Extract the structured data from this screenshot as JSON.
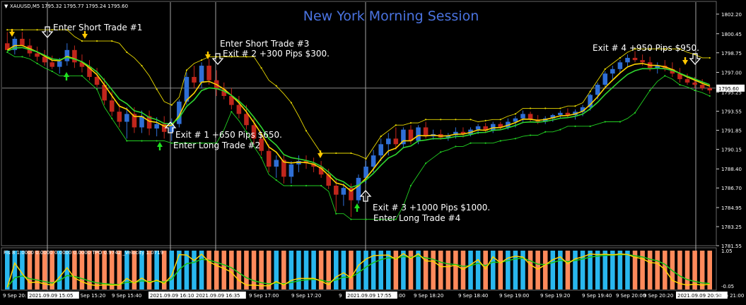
{
  "chart_data": {
    "type": "candlestick",
    "symbol_header": "XAUUSD,M5  1795.32 1795.77 1795.24 1795.60",
    "title": "New York Morning Session",
    "colors": {
      "background": "#000000",
      "bull": "#2f6fd6",
      "bear": "#c0261c",
      "ma_fast": "#ffd400",
      "ma_green": "#2fd62f",
      "trail_yellow": "#e8d800",
      "trail_green": "#22d122",
      "title": "#4a73e0",
      "hist_bull": "#29b7ee",
      "hist_bear": "#ff8a5b"
    },
    "ylim": [
      1781.5,
      1803
    ],
    "y_ticks": [
      "1802.20",
      "1800.45",
      "1798.75",
      "1797.00",
      "1795.25",
      "1793.55",
      "1791.85",
      "1790.15",
      "1788.40",
      "1786.70",
      "1784.95",
      "1783.25",
      "1781.55"
    ],
    "current_price": "1795.60",
    "current_price_value": 1795.6,
    "x_ticks": [
      "9 Sep 20:",
      "2021.09.09 15:05",
      "9 Sep 15:20",
      "9 Sep 15:40",
      "2021.09.09 16:10",
      "2021.09.09 16:35",
      "9 Sep 17:00",
      "9 Sep 17:20",
      "9",
      "2021.09.09 17:55",
      "18:00",
      "9 Sep 18:20",
      "9 Sep 18:40",
      "9 Sep 19:00",
      "9 Sep 19:20",
      "9 Sep 19:40",
      "9 Sep 20:00",
      "9 Sep 20:20",
      "2021.09.09 20:50",
      "9 Sep 21:00"
    ],
    "candles": [
      [
        1799.6,
        1800.6,
        1799.0,
        1799.0
      ],
      [
        1799.0,
        1800.2,
        1798.6,
        1800.0
      ],
      [
        1800.0,
        1800.6,
        1799.4,
        1799.4
      ],
      [
        1799.4,
        1800.0,
        1798.4,
        1798.7
      ],
      [
        1798.7,
        1799.3,
        1798.0,
        1798.4
      ],
      [
        1798.4,
        1799.0,
        1797.6,
        1797.9
      ],
      [
        1797.9,
        1798.5,
        1797.3,
        1797.5
      ],
      [
        1797.5,
        1798.3,
        1796.9,
        1798.0
      ],
      [
        1798.0,
        1799.6,
        1797.6,
        1799.0
      ],
      [
        1799.0,
        1799.4,
        1797.4,
        1797.9
      ],
      [
        1797.9,
        1798.6,
        1797.0,
        1797.5
      ],
      [
        1797.5,
        1798.1,
        1796.3,
        1796.6
      ],
      [
        1796.6,
        1797.4,
        1795.7,
        1795.9
      ],
      [
        1795.9,
        1796.5,
        1794.1,
        1794.5
      ],
      [
        1794.5,
        1795.3,
        1793.1,
        1793.5
      ],
      [
        1793.5,
        1794.2,
        1792.1,
        1792.6
      ],
      [
        1792.6,
        1793.9,
        1791.1,
        1793.3
      ],
      [
        1793.3,
        1793.9,
        1791.6,
        1792.1
      ],
      [
        1792.1,
        1793.6,
        1791.6,
        1793.1
      ],
      [
        1793.1,
        1793.6,
        1791.4,
        1792.0
      ],
      [
        1792.0,
        1793.0,
        1791.3,
        1792.4
      ],
      [
        1792.4,
        1793.1,
        1791.1,
        1791.7
      ],
      [
        1791.7,
        1792.9,
        1790.9,
        1792.4
      ],
      [
        1792.4,
        1794.6,
        1792.1,
        1794.4
      ],
      [
        1794.4,
        1797.0,
        1794.1,
        1796.6
      ],
      [
        1796.6,
        1797.6,
        1795.6,
        1796.1
      ],
      [
        1796.1,
        1797.9,
        1795.6,
        1797.6
      ],
      [
        1797.6,
        1798.2,
        1795.9,
        1796.3
      ],
      [
        1796.3,
        1797.2,
        1794.9,
        1795.5
      ],
      [
        1795.5,
        1796.1,
        1794.6,
        1794.9
      ],
      [
        1794.9,
        1795.6,
        1793.7,
        1794.1
      ],
      [
        1794.1,
        1794.9,
        1792.9,
        1793.3
      ],
      [
        1793.3,
        1794.1,
        1791.9,
        1792.3
      ],
      [
        1792.3,
        1792.9,
        1790.6,
        1791.1
      ],
      [
        1791.1,
        1791.6,
        1789.6,
        1790.0
      ],
      [
        1790.0,
        1790.6,
        1788.1,
        1788.6
      ],
      [
        1788.6,
        1789.6,
        1787.6,
        1789.2
      ],
      [
        1789.2,
        1789.6,
        1787.1,
        1787.7
      ],
      [
        1787.7,
        1789.1,
        1787.1,
        1788.8
      ],
      [
        1788.8,
        1789.6,
        1788.1,
        1789.1
      ],
      [
        1789.1,
        1789.6,
        1788.4,
        1788.9
      ],
      [
        1788.9,
        1789.4,
        1788.1,
        1788.6
      ],
      [
        1788.6,
        1789.1,
        1787.6,
        1787.9
      ],
      [
        1787.9,
        1788.4,
        1786.6,
        1786.9
      ],
      [
        1786.9,
        1787.6,
        1784.6,
        1786.1
      ],
      [
        1786.1,
        1787.1,
        1785.1,
        1786.7
      ],
      [
        1786.7,
        1787.1,
        1784.1,
        1785.6
      ],
      [
        1785.6,
        1787.9,
        1785.3,
        1787.6
      ],
      [
        1787.6,
        1789.1,
        1787.1,
        1788.6
      ],
      [
        1788.6,
        1790.1,
        1788.1,
        1789.6
      ],
      [
        1789.6,
        1791.1,
        1789.1,
        1790.6
      ],
      [
        1790.6,
        1791.6,
        1789.6,
        1791.1
      ],
      [
        1791.1,
        1792.1,
        1790.1,
        1790.6
      ],
      [
        1790.6,
        1792.1,
        1790.3,
        1791.9
      ],
      [
        1791.9,
        1792.3,
        1790.6,
        1790.9
      ],
      [
        1790.9,
        1792.3,
        1790.6,
        1792.1
      ],
      [
        1792.1,
        1792.6,
        1791.1,
        1791.3
      ],
      [
        1791.3,
        1791.9,
        1791.0,
        1791.5
      ],
      [
        1791.5,
        1791.9,
        1791.0,
        1791.2
      ],
      [
        1791.2,
        1791.6,
        1790.9,
        1791.4
      ],
      [
        1791.4,
        1792.1,
        1791.1,
        1791.7
      ],
      [
        1791.7,
        1792.1,
        1791.2,
        1791.5
      ],
      [
        1791.5,
        1792.1,
        1791.3,
        1791.9
      ],
      [
        1791.9,
        1792.4,
        1791.5,
        1792.2
      ],
      [
        1792.2,
        1792.5,
        1791.6,
        1791.8
      ],
      [
        1791.8,
        1792.6,
        1791.6,
        1792.4
      ],
      [
        1792.4,
        1792.6,
        1791.9,
        1792.1
      ],
      [
        1792.1,
        1792.9,
        1791.9,
        1792.6
      ],
      [
        1792.6,
        1793.1,
        1792.1,
        1792.9
      ],
      [
        1792.9,
        1793.6,
        1792.6,
        1793.3
      ],
      [
        1793.3,
        1793.5,
        1792.6,
        1792.8
      ],
      [
        1792.8,
        1793.2,
        1792.4,
        1792.6
      ],
      [
        1792.6,
        1793.1,
        1792.4,
        1792.9
      ],
      [
        1792.9,
        1793.3,
        1792.6,
        1793.2
      ],
      [
        1793.2,
        1793.6,
        1792.9,
        1793.4
      ],
      [
        1793.4,
        1793.8,
        1793.0,
        1793.2
      ],
      [
        1793.2,
        1793.7,
        1792.8,
        1793.5
      ],
      [
        1793.5,
        1794.1,
        1793.1,
        1793.9
      ],
      [
        1793.9,
        1795.1,
        1793.6,
        1795.0
      ],
      [
        1795.0,
        1796.1,
        1794.6,
        1795.9
      ],
      [
        1795.9,
        1797.1,
        1795.6,
        1796.9
      ],
      [
        1796.9,
        1797.6,
        1796.4,
        1797.3
      ],
      [
        1797.3,
        1798.1,
        1796.9,
        1797.9
      ],
      [
        1797.9,
        1798.6,
        1797.5,
        1798.3
      ],
      [
        1798.3,
        1798.9,
        1797.9,
        1798.1
      ],
      [
        1798.1,
        1798.6,
        1797.6,
        1797.9
      ],
      [
        1797.9,
        1798.4,
        1797.1,
        1797.4
      ],
      [
        1797.4,
        1797.9,
        1796.9,
        1797.6
      ],
      [
        1797.6,
        1798.1,
        1797.1,
        1797.3
      ],
      [
        1797.3,
        1797.9,
        1796.6,
        1796.9
      ],
      [
        1796.9,
        1797.4,
        1796.1,
        1796.4
      ],
      [
        1796.4,
        1796.9,
        1795.9,
        1796.1
      ],
      [
        1796.1,
        1796.6,
        1795.6,
        1795.9
      ],
      [
        1795.9,
        1796.4,
        1795.4,
        1795.6
      ],
      [
        1795.6,
        1795.9,
        1795.1,
        1795.4
      ]
    ],
    "indicator_label": "Fls 8 1.0000 0.0000 0.0000 0.0000 TPO 0.9742 _Velocity 1.0719",
    "indicator_ticks": [
      "1.05",
      "-0.05"
    ]
  },
  "annotations": [
    {
      "text": "Enter Short Trade #1",
      "x": 75,
      "y": 43
    },
    {
      "text": "Enter Short Trade #3",
      "x": 311,
      "y": 66
    },
    {
      "text": "Exit # 2 +300 Pips $300.",
      "x": 315,
      "y": 80
    },
    {
      "text": "Exit # 1 +650 Pips $650.",
      "x": 248,
      "y": 195
    },
    {
      "text": "Enter Long Trade #2",
      "x": 245,
      "y": 210
    },
    {
      "text": "Exit # 3 +1000 Pips $1000.",
      "x": 527,
      "y": 298
    },
    {
      "text": "Enter Long Trade #4",
      "x": 528,
      "y": 313
    },
    {
      "text": "Exit # 4 +950 Pips $950.",
      "x": 838,
      "y": 72
    }
  ]
}
